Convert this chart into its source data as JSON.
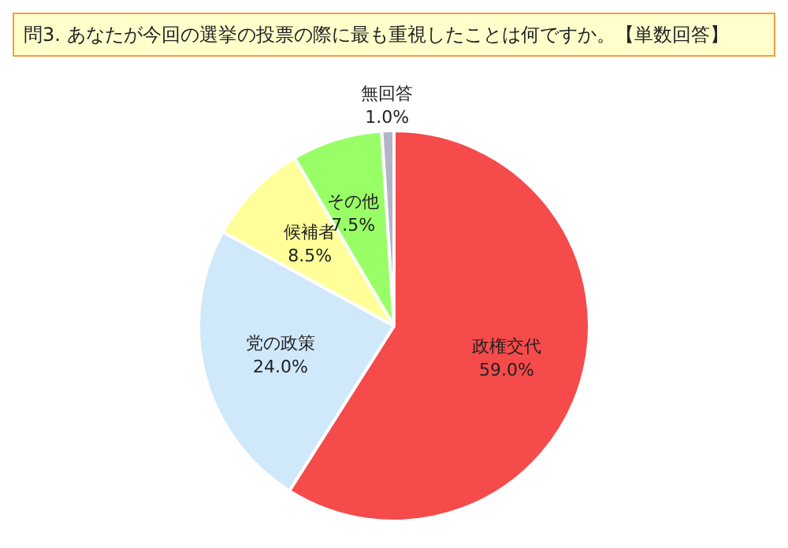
{
  "chart_data": {
    "type": "pie",
    "title": "問3. あなたが今回の選挙の投票の際に最も重視したことは何ですか。【単数回答】",
    "categories": [
      "政権交代",
      "党の政策",
      "候補者",
      "その他",
      "無回答"
    ],
    "values": [
      59.0,
      24.0,
      8.5,
      7.5,
      1.0
    ],
    "colors": [
      "#f54b4b",
      "#cfe8fa",
      "#ffff99",
      "#99ff66",
      "#b4b4c8"
    ],
    "value_labels": [
      "59.0%",
      "24.0%",
      "8.5%",
      "7.5%",
      "1.0%"
    ],
    "legend": false
  }
}
